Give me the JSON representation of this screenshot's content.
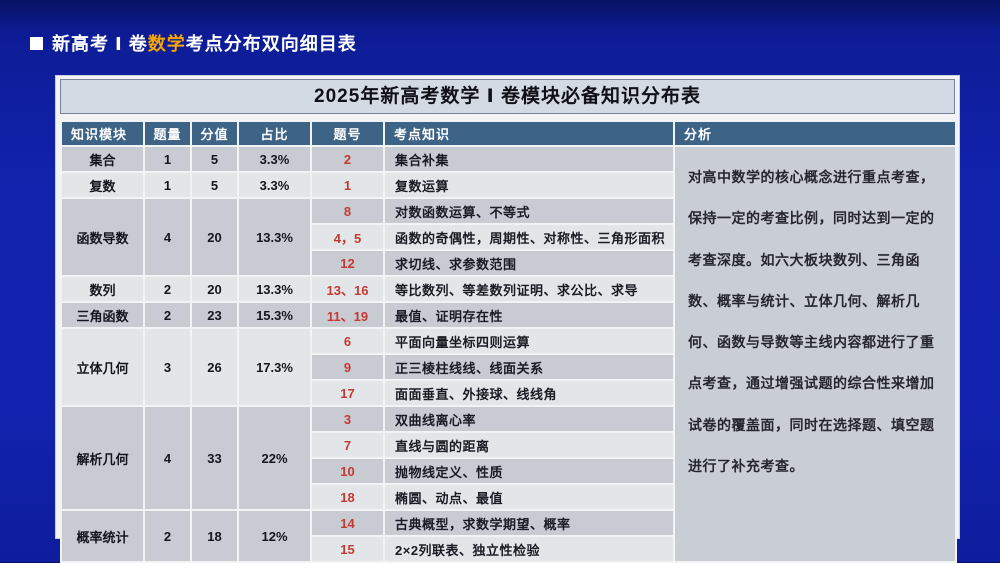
{
  "page": {
    "title_prefix": "新高考 Ⅰ 卷",
    "title_highlight": "数学",
    "title_suffix": "考点分布双向细目表"
  },
  "table": {
    "title": "2025年新高考数学 Ⅰ 卷模块必备知识分布表",
    "headers": [
      "知识模块",
      "题量",
      "分值",
      "占比",
      "题号",
      "考点知识",
      "分析"
    ],
    "analysis": "对高中数学的核心概念进行重点考查，保持一定的考查比例，同时达到一定的考查深度。如六大板块数列、三角函数、概率与统计、立体几何、解析几何、函数与导数等主线内容都进行了重点考查，通过增强试题的综合性来增加试卷的覆盖面，同时在选择题、填空题进行了补充考查。",
    "modules": [
      {
        "name": "集合",
        "count": "1",
        "score": "5",
        "pct": "3.3%",
        "items": [
          {
            "no": "2",
            "topic": "集合补集"
          }
        ]
      },
      {
        "name": "复数",
        "count": "1",
        "score": "5",
        "pct": "3.3%",
        "items": [
          {
            "no": "1",
            "topic": "复数运算"
          }
        ]
      },
      {
        "name": "函数导数",
        "count": "4",
        "score": "20",
        "pct": "13.3%",
        "items": [
          {
            "no": "8",
            "topic": "对数函数运算、不等式"
          },
          {
            "no": "4，5",
            "topic": "函数的奇偶性，周期性、对称性、三角形面积"
          },
          {
            "no": "12",
            "topic": "求切线、求参数范围"
          }
        ]
      },
      {
        "name": "数列",
        "count": "2",
        "score": "20",
        "pct": "13.3%",
        "items": [
          {
            "no": "13、16",
            "topic": "等比数列、等差数列证明、求公比、求导"
          }
        ]
      },
      {
        "name": "三角函数",
        "count": "2",
        "score": "23",
        "pct": "15.3%",
        "items": [
          {
            "no": "11、19",
            "topic": "最值、证明存在性"
          }
        ]
      },
      {
        "name": "立体几何",
        "count": "3",
        "score": "26",
        "pct": "17.3%",
        "items": [
          {
            "no": "6",
            "topic": "平面向量坐标四则运算"
          },
          {
            "no": "9",
            "topic": "正三棱柱线线、线面关系"
          },
          {
            "no": "17",
            "topic": "面面垂直、外接球、线线角"
          }
        ]
      },
      {
        "name": "解析几何",
        "count": "4",
        "score": "33",
        "pct": "22%",
        "items": [
          {
            "no": "3",
            "topic": "双曲线离心率"
          },
          {
            "no": "7",
            "topic": "直线与圆的距离"
          },
          {
            "no": "10",
            "topic": "抛物线定义、性质"
          },
          {
            "no": "18",
            "topic": "椭圆、动点、最值"
          }
        ]
      },
      {
        "name": "概率统计",
        "count": "2",
        "score": "18",
        "pct": "12%",
        "items": [
          {
            "no": "14",
            "topic": "古典概型，求数学期望、概率"
          },
          {
            "no": "15",
            "topic": "2×2列联表、独立性检验"
          }
        ]
      }
    ]
  },
  "colors": {
    "background_blue": "#1223b0",
    "highlight_orange": "#f7a600",
    "header_steel_blue": "#3d6386",
    "question_number_red": "#c23a31",
    "row_dark_gray": "#c8ccd2",
    "row_light_gray": "#e3e6e9",
    "analysis_gray": "#c9ced4",
    "title_bar_gray": "#d4dae3"
  }
}
